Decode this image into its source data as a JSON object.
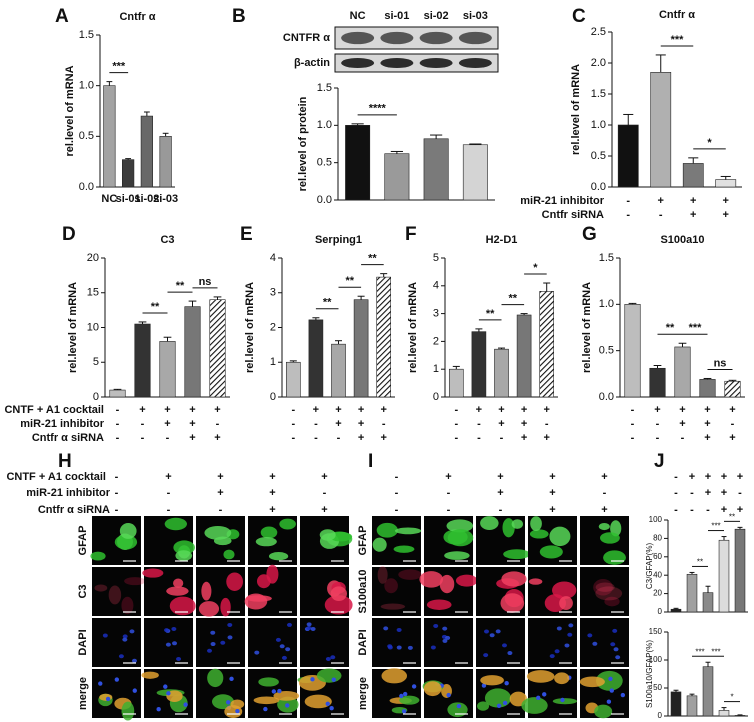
{
  "chart_data": [
    {
      "type": "bar",
      "panel": "A",
      "title": "Cntfr α",
      "y_label": "rel.level of mRNA",
      "categories": [
        "NC",
        "si-01",
        "si-02",
        "si-03"
      ],
      "values": [
        1.0,
        0.27,
        0.7,
        0.5
      ],
      "errors": [
        0.04,
        0.01,
        0.04,
        0.03
      ],
      "colors": [
        "#a3a3a3",
        "#3c3c3c",
        "#686868",
        "#999999"
      ],
      "ylim": [
        0,
        1.5
      ],
      "yticks": [
        {
          "value": 0,
          "label": "0.0"
        },
        0.5,
        {
          "value": 1,
          "label": "1.0"
        },
        1.5
      ],
      "significance": [
        "***"
      ]
    },
    {
      "type": "bar",
      "panel": "B",
      "y_label": "rel.level of protein",
      "categories": [
        "NC",
        "si-01",
        "si-02",
        "si-03"
      ],
      "blot_labels": [
        "CNTFR α",
        "β-actin"
      ],
      "values": [
        1.0,
        0.62,
        0.82,
        0.74
      ],
      "errors": [
        0.02,
        0.03,
        0.05,
        0.01
      ],
      "colors": [
        "#111111",
        "#9a9a9a",
        "#7a7a7a",
        "#d4d4d4"
      ],
      "ylim": [
        0,
        1.5
      ],
      "yticks": [
        {
          "value": 0,
          "label": "0.0"
        },
        0.5,
        {
          "value": 1,
          "label": "1.0"
        },
        1.5
      ],
      "significance": [
        "****"
      ]
    },
    {
      "type": "bar",
      "panel": "C",
      "title": "Cntfr α",
      "y_label": "rel.level of mRNA",
      "values": [
        1.0,
        1.85,
        0.38,
        0.12
      ],
      "errors": [
        0.17,
        0.28,
        0.09,
        0.05
      ],
      "colors": [
        "#111111",
        "#b0b0b0",
        "#7a7a7a",
        "#e0e0e0"
      ],
      "ylim": [
        0,
        2.5
      ],
      "yticks": [
        {
          "value": 0,
          "label": "0.0"
        },
        0.5,
        {
          "value": 1,
          "label": "1.0"
        },
        1.5,
        {
          "value": 2,
          "label": "2.0"
        },
        2.5
      ],
      "significance": [
        "***",
        "*"
      ],
      "condition_labels": [
        "miR-21 inhibitor",
        "Cntfr siRNA"
      ],
      "conditions": [
        [
          "-",
          "+",
          "+",
          "+"
        ],
        [
          "-",
          "-",
          "+",
          "+"
        ]
      ]
    },
    {
      "type": "bar",
      "panel": "D",
      "title": "C3",
      "y_label": "rel.level of mRNA",
      "values": [
        1.0,
        10.5,
        8.0,
        13.0,
        14.0
      ],
      "errors": [
        0.1,
        0.3,
        0.6,
        0.8,
        0.4
      ],
      "colors": [
        "#bdbdbd",
        "#333333",
        "#a8a8a8",
        "#777777",
        "#ffffff"
      ],
      "patterns": [
        "solid",
        "solid",
        "solid",
        "solid",
        "hatch"
      ],
      "ylim": [
        0,
        20
      ],
      "yticks": [
        0,
        5,
        10,
        15,
        20
      ],
      "significance": [
        "**",
        "**",
        "ns"
      ],
      "condition_labels": [
        "CNTF + A1 cocktail",
        "miR-21 inhibitor",
        "Cntfr α siRNA"
      ],
      "conditions": [
        [
          "-",
          "+",
          "+",
          "+",
          "+"
        ],
        [
          "-",
          "-",
          "+",
          "+",
          "-"
        ],
        [
          "-",
          "-",
          "-",
          "+",
          "+"
        ]
      ]
    },
    {
      "type": "bar",
      "panel": "E",
      "title": "Serping1",
      "y_label": "rel.level of mRNA",
      "values": [
        1.0,
        2.22,
        1.52,
        2.8,
        3.45
      ],
      "errors": [
        0.04,
        0.06,
        0.1,
        0.1,
        0.1
      ],
      "colors": [
        "#bdbdbd",
        "#333333",
        "#a8a8a8",
        "#777777",
        "#ffffff"
      ],
      "patterns": [
        "solid",
        "solid",
        "solid",
        "solid",
        "hatch"
      ],
      "ylim": [
        0,
        4
      ],
      "yticks": [
        0,
        1,
        2,
        3,
        4
      ],
      "significance": [
        "**",
        "**",
        "**"
      ],
      "conditions": [
        [
          "-",
          "+",
          "+",
          "+",
          "+"
        ],
        [
          "-",
          "-",
          "+",
          "+",
          "-"
        ],
        [
          "-",
          "-",
          "-",
          "+",
          "+"
        ]
      ]
    },
    {
      "type": "bar",
      "panel": "F",
      "title": "H2-D1",
      "y_label": "rel.level of mRNA",
      "values": [
        1.0,
        2.35,
        1.72,
        2.95,
        3.8
      ],
      "errors": [
        0.1,
        0.1,
        0.04,
        0.05,
        0.3
      ],
      "colors": [
        "#bdbdbd",
        "#333333",
        "#a8a8a8",
        "#777777",
        "#ffffff"
      ],
      "patterns": [
        "solid",
        "solid",
        "solid",
        "solid",
        "hatch"
      ],
      "ylim": [
        0,
        5
      ],
      "yticks": [
        0,
        1,
        2,
        3,
        4,
        5
      ],
      "significance": [
        "**",
        "**",
        "*"
      ],
      "conditions": [
        [
          "-",
          "+",
          "+",
          "+",
          "+"
        ],
        [
          "-",
          "-",
          "+",
          "+",
          "-"
        ],
        [
          "-",
          "-",
          "-",
          "+",
          "+"
        ]
      ]
    },
    {
      "type": "bar",
      "panel": "G",
      "title": "S100a10",
      "y_label": "rel.level of mRNA",
      "values": [
        1.0,
        0.31,
        0.54,
        0.19,
        0.17
      ],
      "errors": [
        0.01,
        0.03,
        0.04,
        0.01,
        0.01
      ],
      "colors": [
        "#bdbdbd",
        "#333333",
        "#a8a8a8",
        "#777777",
        "#ffffff"
      ],
      "patterns": [
        "solid",
        "solid",
        "solid",
        "solid",
        "hatch"
      ],
      "ylim": [
        0,
        1.5
      ],
      "yticks": [
        {
          "value": 0,
          "label": "0.0"
        },
        0.5,
        {
          "value": 1,
          "label": "1.0"
        },
        1.5
      ],
      "significance": [
        "**",
        "***",
        "ns"
      ],
      "conditions": [
        [
          "-",
          "+",
          "+",
          "+",
          "+"
        ],
        [
          "-",
          "-",
          "+",
          "+",
          "-"
        ],
        [
          "-",
          "-",
          "-",
          "+",
          "+"
        ]
      ]
    },
    {
      "type": "bar",
      "panel": "J",
      "y_label": "C3/GFAP(%)",
      "values": [
        3,
        41,
        21,
        78,
        90
      ],
      "errors": [
        1,
        2,
        7,
        4,
        2
      ],
      "colors": [
        "#222222",
        "#a0a0a0",
        "#8a8a8a",
        "#dcdcdc",
        "#777777"
      ],
      "ylim": [
        0,
        100
      ],
      "yticks": [
        0,
        20,
        40,
        60,
        80,
        100
      ],
      "significance": [
        "**",
        "***",
        "**"
      ],
      "conditions": [
        [
          "-",
          "+",
          "+",
          "+",
          "+"
        ],
        [
          "-",
          "-",
          "+",
          "+",
          "-"
        ],
        [
          "-",
          "-",
          "-",
          "+",
          "+"
        ]
      ]
    },
    {
      "type": "bar",
      "y_label": "S100a10/GFAP(%)",
      "values": [
        43,
        36,
        88,
        10,
        1
      ],
      "errors": [
        3,
        3,
        8,
        5,
        1
      ],
      "colors": [
        "#222222",
        "#a0a0a0",
        "#8a8a8a",
        "#dcdcdc",
        "#777777"
      ],
      "ylim": [
        0,
        150
      ],
      "yticks": [
        0,
        50,
        100,
        150
      ],
      "significance": [
        "***",
        "***",
        "*"
      ]
    }
  ],
  "image_panels": [
    {
      "panel": "H",
      "rows": [
        "GFAP",
        "C3",
        "DAPI",
        "merge"
      ],
      "condition_labels": [
        "CNTF + A1 cocktail",
        "miR-21 inhibitor",
        "Cntfr α siRNA"
      ],
      "conditions": [
        [
          "-",
          "+",
          "+",
          "+",
          "+"
        ],
        [
          "-",
          "-",
          "+",
          "+",
          "-"
        ],
        [
          "-",
          "-",
          "-",
          "+",
          "+"
        ]
      ]
    },
    {
      "panel": "I",
      "rows": [
        "GFAP",
        "S100a10",
        "DAPI",
        "merge"
      ],
      "conditions": [
        [
          "-",
          "+",
          "+",
          "+",
          "+"
        ],
        [
          "-",
          "-",
          "+",
          "+",
          "-"
        ],
        [
          "-",
          "-",
          "-",
          "+",
          "+"
        ]
      ]
    }
  ]
}
